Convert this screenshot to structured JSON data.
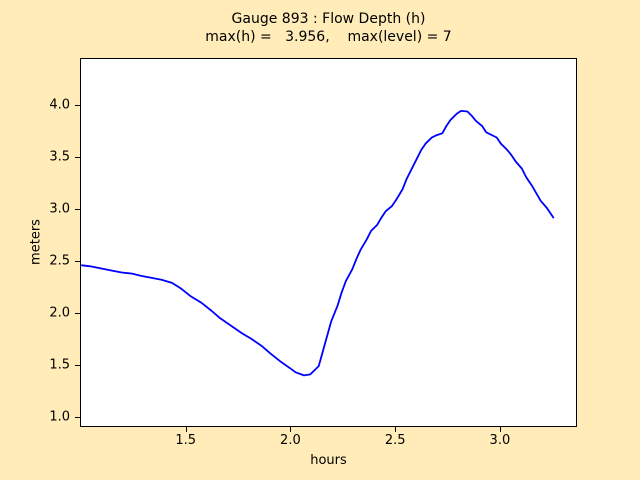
{
  "figure": {
    "background": "#FFECB8",
    "plot_background": "#FFFFFF",
    "frame_color": "#000000",
    "title": "Gauge 893 : Flow Depth (h)",
    "subtitle": "max(h) =   3.956,    max(level) = 7"
  },
  "chart_data": {
    "type": "line",
    "title": "Gauge 893 : Flow Depth (h)",
    "subtitle": "max(h) =   3.956,    max(level) = 7",
    "xlabel": "hours",
    "ylabel": "meters",
    "xlim": [
      0.9955,
      3.368
    ],
    "ylim": [
      0.904,
      4.455
    ],
    "xticks": [
      1.5,
      2.0,
      2.5,
      3.0
    ],
    "yticks": [
      1.0,
      1.5,
      2.0,
      2.5,
      3.0,
      3.5,
      4.0
    ],
    "grid": false,
    "legend": "none",
    "max_h": 3.956,
    "max_level": 7,
    "series": [
      {
        "name": "flow depth h",
        "color": "#0000FF",
        "x": [
          1.0,
          1.04,
          1.09,
          1.14,
          1.19,
          1.24,
          1.28,
          1.33,
          1.38,
          1.43,
          1.47,
          1.52,
          1.57,
          1.62,
          1.66,
          1.71,
          1.76,
          1.81,
          1.86,
          1.9,
          1.95,
          2.0,
          2.02,
          2.06,
          2.09,
          2.13,
          2.15,
          2.19,
          2.22,
          2.24,
          2.26,
          2.29,
          2.31,
          2.33,
          2.36,
          2.38,
          2.41,
          2.43,
          2.45,
          2.48,
          2.5,
          2.53,
          2.55,
          2.57,
          2.6,
          2.62,
          2.64,
          2.67,
          2.69,
          2.72,
          2.74,
          2.76,
          2.79,
          2.81,
          2.84,
          2.86,
          2.88,
          2.91,
          2.93,
          2.98,
          3.0,
          3.03,
          3.05,
          3.07,
          3.1,
          3.12,
          3.15,
          3.17,
          3.19,
          3.22,
          3.24,
          3.25
        ],
        "y": [
          2.47,
          2.46,
          2.44,
          2.42,
          2.4,
          2.39,
          2.37,
          2.35,
          2.33,
          2.3,
          2.25,
          2.17,
          2.11,
          2.03,
          1.96,
          1.89,
          1.82,
          1.76,
          1.69,
          1.62,
          1.54,
          1.47,
          1.44,
          1.41,
          1.42,
          1.5,
          1.64,
          1.93,
          2.08,
          2.21,
          2.32,
          2.43,
          2.53,
          2.62,
          2.72,
          2.8,
          2.86,
          2.93,
          2.99,
          3.04,
          3.1,
          3.2,
          3.3,
          3.38,
          3.5,
          3.58,
          3.64,
          3.7,
          3.72,
          3.74,
          3.81,
          3.87,
          3.93,
          3.956,
          3.95,
          3.91,
          3.86,
          3.81,
          3.75,
          3.7,
          3.64,
          3.58,
          3.53,
          3.47,
          3.4,
          3.32,
          3.23,
          3.16,
          3.09,
          3.02,
          2.96,
          2.93
        ]
      }
    ]
  }
}
